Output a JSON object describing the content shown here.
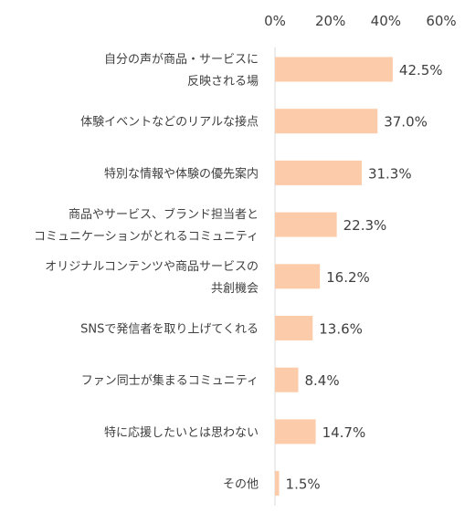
{
  "chart_data": {
    "type": "bar",
    "orientation": "horizontal",
    "title": "",
    "xlabel": "",
    "ylabel": "",
    "xlim": [
      0,
      60
    ],
    "x_ticks": [
      "0%",
      "20%",
      "40%",
      "60%"
    ],
    "grid": false,
    "legend": "none",
    "bar_color": "#FCCCAA",
    "categories": [
      [
        "自分の声が商品・サービスに",
        "反映される場"
      ],
      [
        "体験イベントなどのリアルな接点"
      ],
      [
        "特別な情報や体験の優先案内"
      ],
      [
        "商品やサービス、ブランド担当者と",
        "コミュニケーションがとれるコミュニティ"
      ],
      [
        "オリジナルコンテンツや商品サービスの",
        "共創機会"
      ],
      [
        "SNSで発信者を取り上げてくれる"
      ],
      [
        "ファン同士が集まるコミュニティ"
      ],
      [
        "特に応援したいとは思わない"
      ],
      [
        "その他"
      ]
    ],
    "values": [
      42.5,
      37.0,
      31.3,
      22.3,
      16.2,
      13.6,
      8.4,
      14.7,
      1.5
    ],
    "value_labels": [
      "42.5%",
      "37.0%",
      "31.3%",
      "22.3%",
      "16.2%",
      "13.6%",
      "8.4%",
      "14.7%",
      "1.5%"
    ]
  }
}
